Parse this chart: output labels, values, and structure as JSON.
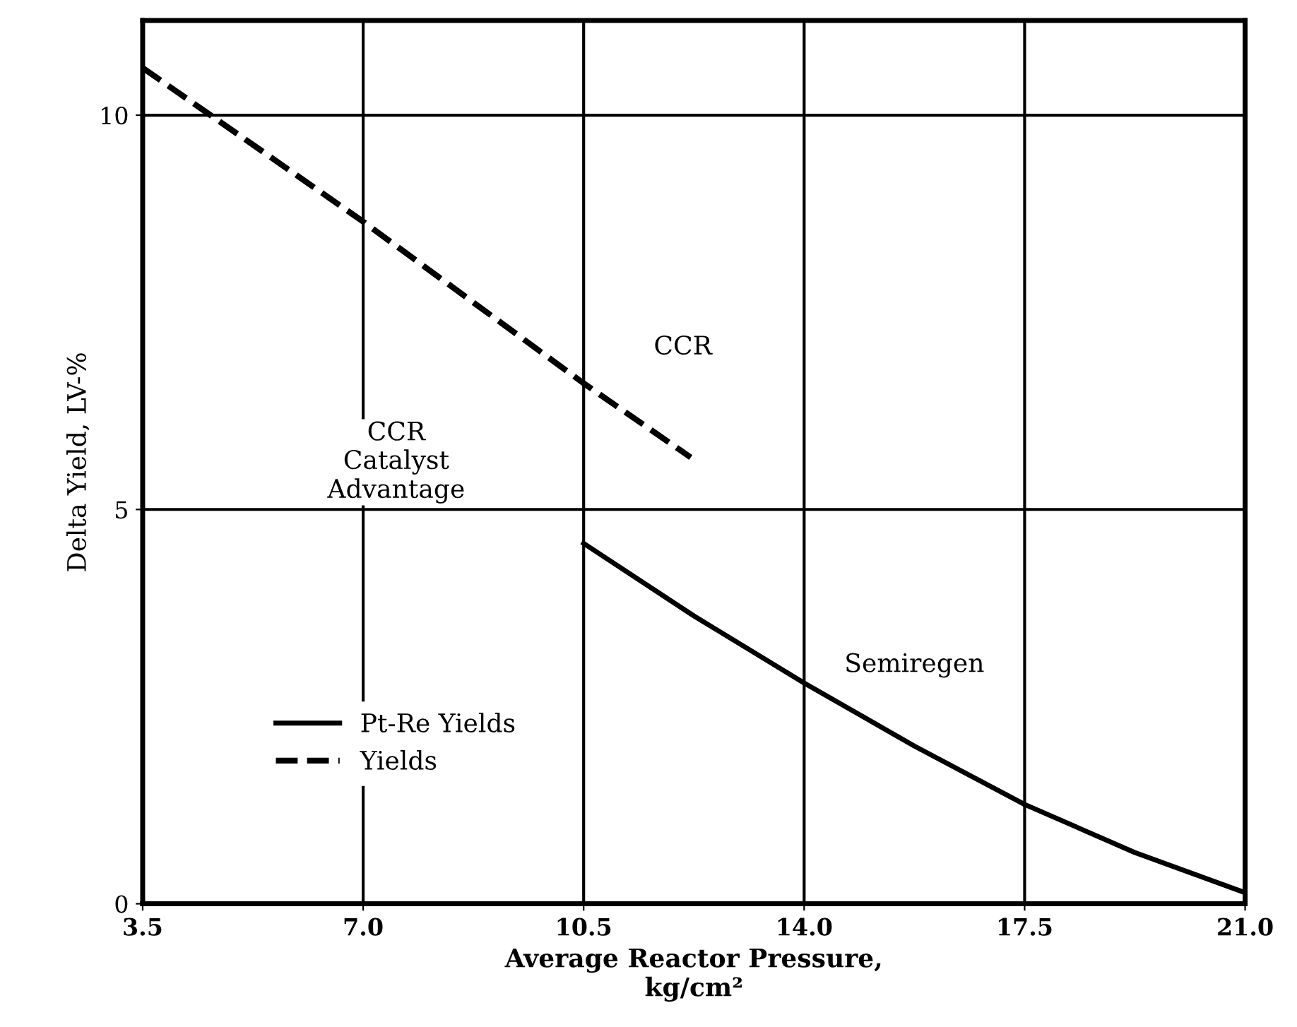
{
  "chart_data": {
    "type": "line",
    "xlabel": "Average Reactor Pressure,\nkg/cm²",
    "ylabel": "Delta Yield, LV-%",
    "xlim": [
      3.5,
      21.0
    ],
    "ylim": [
      0,
      11.2
    ],
    "xticks": [
      3.5,
      {
        "value": 7,
        "label": "7.0"
      },
      10.5,
      {
        "value": 14,
        "label": "14.0"
      },
      17.5,
      {
        "value": 21,
        "label": "21.0"
      }
    ],
    "yticks": [
      0,
      5,
      10
    ],
    "grid": true,
    "legend": "bottom left",
    "series": [
      {
        "name": "Pt-Re Yields",
        "color": "#000000",
        "line_style": "solid",
        "x": [
          10.5,
          12.25,
          14.0,
          15.75,
          17.5,
          19.25,
          21.0
        ],
        "values": [
          4.57,
          3.65,
          2.8,
          2.0,
          1.26,
          0.65,
          0.14
        ]
      },
      {
        "name": "Yields",
        "color": "#000000",
        "line_style": "dashed",
        "x": [
          3.5,
          7.0,
          10.5,
          12.2
        ],
        "values": [
          10.6,
          8.65,
          6.6,
          5.66
        ]
      }
    ],
    "annotations": [
      "CCR",
      "CCR\nCatalyst\nAdvantage",
      "Semiregen"
    ]
  }
}
